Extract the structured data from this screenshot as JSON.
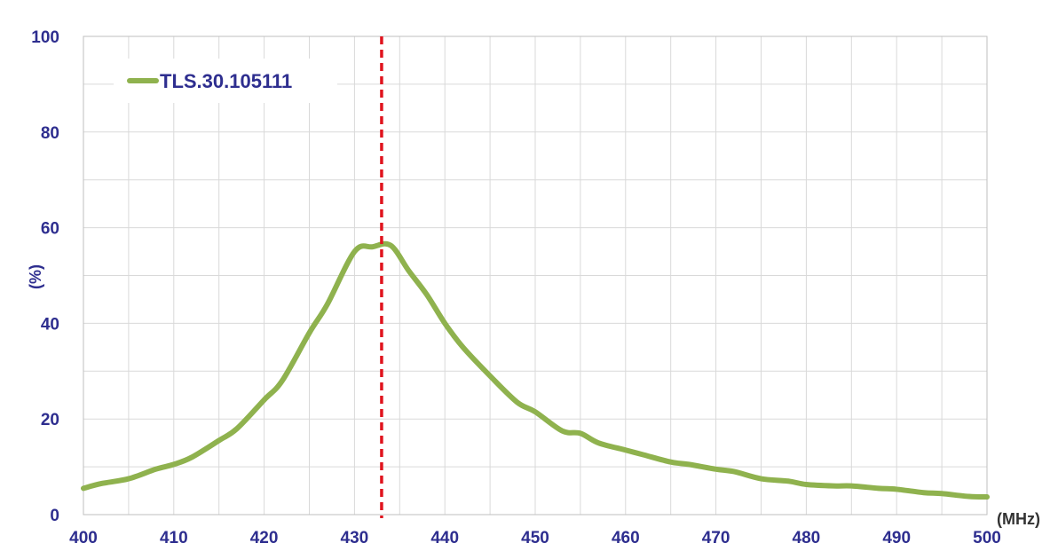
{
  "chart_data": {
    "type": "line",
    "title": "",
    "xlabel": "(MHz)",
    "ylabel": "(%)",
    "xlim": [
      400,
      500
    ],
    "ylim": [
      0,
      100
    ],
    "x_ticks": [
      400,
      410,
      420,
      430,
      440,
      450,
      460,
      470,
      480,
      490,
      500
    ],
    "y_ticks": [
      0,
      20,
      40,
      60,
      80,
      100
    ],
    "grid": true,
    "legend_position": "top-left",
    "marker_x": 433,
    "series": [
      {
        "name": "TLS.30.105111",
        "color": "#8fb24e",
        "x": [
          400,
          402,
          405,
          408,
          410,
          412,
          415,
          417,
          420,
          422,
          425,
          427,
          430,
          432,
          434,
          436,
          438,
          440,
          442,
          445,
          448,
          450,
          453,
          455,
          457,
          460,
          462,
          465,
          467,
          470,
          472,
          475,
          478,
          480,
          483,
          485,
          488,
          490,
          493,
          495,
          498,
          500
        ],
        "y": [
          5.5,
          6.5,
          7.5,
          9.5,
          10.5,
          12,
          15.5,
          18,
          24,
          28,
          38,
          44,
          55,
          56,
          56.3,
          51,
          46,
          40,
          35,
          29,
          23.5,
          21.5,
          17.5,
          17,
          15,
          13.5,
          12.5,
          11,
          10.5,
          9.5,
          9,
          7.5,
          7,
          6.3,
          6,
          6,
          5.5,
          5.3,
          4.6,
          4.4,
          3.8,
          3.7
        ]
      }
    ],
    "colors": {
      "axis_text": "#2e2e8f",
      "marker_line": "#e0141e",
      "grid": "#d9d9d9",
      "axis": "#bfbfbf"
    }
  }
}
